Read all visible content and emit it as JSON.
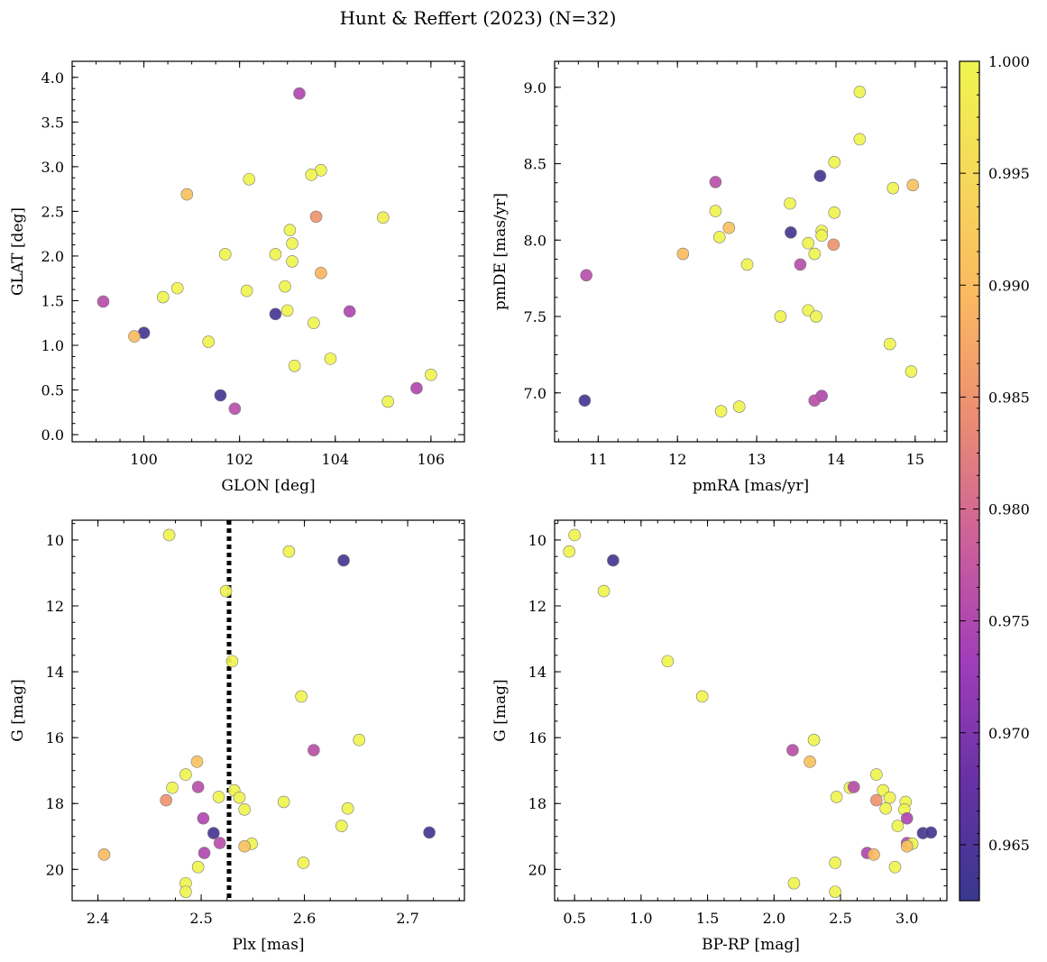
{
  "figure_title": "Hunt & Reffert (2023) (N=32)",
  "colorbar": {
    "range": [
      0.9625,
      1.0
    ],
    "ticks": [
      0.965,
      0.97,
      0.975,
      0.98,
      0.985,
      0.99,
      0.995,
      1.0
    ],
    "tick_labels": [
      "0.965",
      "0.970",
      "0.975",
      "0.980",
      "0.985",
      "0.990",
      "0.995",
      "1.000"
    ],
    "colormap": "plasma",
    "stops": [
      "#39388e",
      "#6731a5",
      "#a13dba",
      "#cd5f9a",
      "#eb8b73",
      "#fbb760",
      "#f6d85a",
      "#f0f44f"
    ]
  },
  "chart_data": [
    {
      "type": "scatter",
      "title": "",
      "xlabel": "GLON [deg]",
      "ylabel": "GLAT [deg]",
      "xlim": [
        98.5,
        106.7
      ],
      "ylim": [
        -0.08,
        4.18
      ],
      "xticks": [
        100,
        102,
        104,
        106
      ],
      "xtick_labels": [
        "100",
        "102",
        "104",
        "106"
      ],
      "yticks": [
        0.0,
        0.5,
        1.0,
        1.5,
        2.0,
        2.5,
        3.0,
        3.5,
        4.0
      ],
      "ytick_labels": [
        "0.0",
        "0.5",
        "1.0",
        "1.5",
        "2.0",
        "2.5",
        "3.0",
        "3.5",
        "4.0"
      ],
      "points": [
        {
          "x": 103.25,
          "y": 3.82,
          "c": 0.975
        },
        {
          "x": 103.7,
          "y": 2.96,
          "c": 1.0
        },
        {
          "x": 103.5,
          "y": 2.91,
          "c": 1.0
        },
        {
          "x": 102.2,
          "y": 2.86,
          "c": 1.0
        },
        {
          "x": 100.9,
          "y": 2.69,
          "c": 0.991
        },
        {
          "x": 103.6,
          "y": 2.44,
          "c": 0.985
        },
        {
          "x": 105.0,
          "y": 2.43,
          "c": 0.999
        },
        {
          "x": 103.05,
          "y": 2.29,
          "c": 1.0
        },
        {
          "x": 103.1,
          "y": 2.14,
          "c": 1.0
        },
        {
          "x": 101.7,
          "y": 2.02,
          "c": 1.0
        },
        {
          "x": 102.75,
          "y": 2.02,
          "c": 1.0
        },
        {
          "x": 103.1,
          "y": 1.94,
          "c": 1.0
        },
        {
          "x": 103.7,
          "y": 1.81,
          "c": 0.989
        },
        {
          "x": 102.95,
          "y": 1.66,
          "c": 1.0
        },
        {
          "x": 100.7,
          "y": 1.64,
          "c": 1.0
        },
        {
          "x": 102.15,
          "y": 1.61,
          "c": 1.0
        },
        {
          "x": 100.4,
          "y": 1.54,
          "c": 1.0
        },
        {
          "x": 99.15,
          "y": 1.49,
          "c": 0.976
        },
        {
          "x": 103.0,
          "y": 1.39,
          "c": 1.0
        },
        {
          "x": 104.3,
          "y": 1.38,
          "c": 0.975
        },
        {
          "x": 102.75,
          "y": 1.35,
          "c": 0.964
        },
        {
          "x": 103.55,
          "y": 1.25,
          "c": 1.0
        },
        {
          "x": 100.0,
          "y": 1.14,
          "c": 0.964
        },
        {
          "x": 99.8,
          "y": 1.1,
          "c": 0.99
        },
        {
          "x": 101.35,
          "y": 1.04,
          "c": 1.0
        },
        {
          "x": 103.9,
          "y": 0.85,
          "c": 1.0
        },
        {
          "x": 103.15,
          "y": 0.77,
          "c": 1.0
        },
        {
          "x": 106.0,
          "y": 0.67,
          "c": 1.0
        },
        {
          "x": 105.7,
          "y": 0.52,
          "c": 0.975
        },
        {
          "x": 101.6,
          "y": 0.44,
          "c": 0.964
        },
        {
          "x": 105.1,
          "y": 0.37,
          "c": 1.0
        },
        {
          "x": 101.9,
          "y": 0.29,
          "c": 0.976
        }
      ]
    },
    {
      "type": "scatter",
      "title": "",
      "xlabel": "pmRA [mas/yr]",
      "ylabel": "pmDE [mas/yr]",
      "xlim": [
        10.45,
        15.4
      ],
      "ylim": [
        6.68,
        9.17
      ],
      "xticks": [
        11,
        12,
        13,
        14,
        15
      ],
      "xtick_labels": [
        "11",
        "12",
        "13",
        "14",
        "15"
      ],
      "yticks": [
        7.0,
        7.5,
        8.0,
        8.5,
        9.0
      ],
      "ytick_labels": [
        "7.0",
        "7.5",
        "8.0",
        "8.5",
        "9.0"
      ],
      "points": [
        {
          "x": 14.3,
          "y": 8.97,
          "c": 1.0
        },
        {
          "x": 14.3,
          "y": 8.66,
          "c": 1.0
        },
        {
          "x": 13.98,
          "y": 8.51,
          "c": 1.0
        },
        {
          "x": 13.8,
          "y": 8.42,
          "c": 0.964
        },
        {
          "x": 12.48,
          "y": 8.38,
          "c": 0.976
        },
        {
          "x": 14.97,
          "y": 8.36,
          "c": 0.991
        },
        {
          "x": 14.72,
          "y": 8.34,
          "c": 1.0
        },
        {
          "x": 13.42,
          "y": 8.24,
          "c": 1.0
        },
        {
          "x": 12.48,
          "y": 8.19,
          "c": 1.0
        },
        {
          "x": 13.98,
          "y": 8.18,
          "c": 1.0
        },
        {
          "x": 12.65,
          "y": 8.08,
          "c": 0.991
        },
        {
          "x": 13.82,
          "y": 8.06,
          "c": 1.0
        },
        {
          "x": 13.43,
          "y": 8.05,
          "c": 0.964
        },
        {
          "x": 12.53,
          "y": 8.02,
          "c": 1.0
        },
        {
          "x": 13.82,
          "y": 8.03,
          "c": 1.0
        },
        {
          "x": 13.65,
          "y": 7.98,
          "c": 1.0
        },
        {
          "x": 13.97,
          "y": 7.97,
          "c": 0.985
        },
        {
          "x": 13.73,
          "y": 7.91,
          "c": 1.0
        },
        {
          "x": 12.07,
          "y": 7.91,
          "c": 0.99
        },
        {
          "x": 12.88,
          "y": 7.84,
          "c": 1.0
        },
        {
          "x": 13.55,
          "y": 7.84,
          "c": 0.976
        },
        {
          "x": 10.85,
          "y": 7.77,
          "c": 0.976
        },
        {
          "x": 13.65,
          "y": 7.54,
          "c": 1.0
        },
        {
          "x": 13.3,
          "y": 7.5,
          "c": 1.0
        },
        {
          "x": 13.75,
          "y": 7.5,
          "c": 1.0
        },
        {
          "x": 14.68,
          "y": 7.32,
          "c": 1.0
        },
        {
          "x": 14.95,
          "y": 7.14,
          "c": 1.0
        },
        {
          "x": 13.82,
          "y": 6.98,
          "c": 0.975
        },
        {
          "x": 13.73,
          "y": 6.95,
          "c": 0.976
        },
        {
          "x": 10.83,
          "y": 6.95,
          "c": 0.964
        },
        {
          "x": 12.78,
          "y": 6.91,
          "c": 1.0
        },
        {
          "x": 12.55,
          "y": 6.88,
          "c": 1.0
        }
      ]
    },
    {
      "type": "scatter",
      "title": "",
      "xlabel": "Plx [mas]",
      "ylabel": "G [mag]",
      "xlim": [
        2.375,
        2.755
      ],
      "ylim": [
        20.95,
        9.4
      ],
      "y_inverted": true,
      "xticks": [
        2.4,
        2.5,
        2.6,
        2.7
      ],
      "xtick_labels": [
        "2.4",
        "2.5",
        "2.6",
        "2.7"
      ],
      "yticks": [
        10,
        12,
        14,
        16,
        18,
        20
      ],
      "ytick_labels": [
        "10",
        "12",
        "14",
        "16",
        "18",
        "20"
      ],
      "vline": {
        "x": 2.527,
        "style": "dotted"
      },
      "points": [
        {
          "x": 2.469,
          "y": 9.85,
          "c": 1.0
        },
        {
          "x": 2.585,
          "y": 10.35,
          "c": 1.0
        },
        {
          "x": 2.638,
          "y": 10.62,
          "c": 0.964
        },
        {
          "x": 2.524,
          "y": 11.55,
          "c": 1.0
        },
        {
          "x": 2.53,
          "y": 13.68,
          "c": 1.0
        },
        {
          "x": 2.597,
          "y": 14.75,
          "c": 1.0
        },
        {
          "x": 2.653,
          "y": 16.07,
          "c": 1.0
        },
        {
          "x": 2.609,
          "y": 16.38,
          "c": 0.976
        },
        {
          "x": 2.496,
          "y": 16.73,
          "c": 0.991
        },
        {
          "x": 2.485,
          "y": 17.12,
          "c": 1.0
        },
        {
          "x": 2.472,
          "y": 17.52,
          "c": 1.0
        },
        {
          "x": 2.497,
          "y": 17.5,
          "c": 0.976
        },
        {
          "x": 2.532,
          "y": 17.6,
          "c": 1.0
        },
        {
          "x": 2.537,
          "y": 17.82,
          "c": 1.0
        },
        {
          "x": 2.517,
          "y": 17.8,
          "c": 1.0
        },
        {
          "x": 2.466,
          "y": 17.9,
          "c": 0.985
        },
        {
          "x": 2.58,
          "y": 17.95,
          "c": 1.0
        },
        {
          "x": 2.542,
          "y": 18.18,
          "c": 1.0
        },
        {
          "x": 2.642,
          "y": 18.15,
          "c": 1.0
        },
        {
          "x": 2.502,
          "y": 18.45,
          "c": 0.975
        },
        {
          "x": 2.636,
          "y": 18.68,
          "c": 1.0
        },
        {
          "x": 2.512,
          "y": 18.9,
          "c": 0.964
        },
        {
          "x": 2.721,
          "y": 18.88,
          "c": 0.964
        },
        {
          "x": 2.518,
          "y": 19.2,
          "c": 0.976
        },
        {
          "x": 2.549,
          "y": 19.22,
          "c": 1.0
        },
        {
          "x": 2.542,
          "y": 19.3,
          "c": 0.991
        },
        {
          "x": 2.503,
          "y": 19.5,
          "c": 0.975
        },
        {
          "x": 2.406,
          "y": 19.55,
          "c": 0.99
        },
        {
          "x": 2.599,
          "y": 19.8,
          "c": 1.0
        },
        {
          "x": 2.497,
          "y": 19.93,
          "c": 1.0
        },
        {
          "x": 2.485,
          "y": 20.42,
          "c": 1.0
        },
        {
          "x": 2.485,
          "y": 20.68,
          "c": 1.0
        }
      ]
    },
    {
      "type": "scatter",
      "title": "",
      "xlabel": "BP-RP [mag]",
      "ylabel": "G [mag]",
      "xlim": [
        0.35,
        3.3
      ],
      "ylim": [
        20.95,
        9.4
      ],
      "y_inverted": true,
      "xticks": [
        0.5,
        1.0,
        1.5,
        2.0,
        2.5,
        3.0
      ],
      "xtick_labels": [
        "0.5",
        "1.0",
        "1.5",
        "2.0",
        "2.5",
        "3.0"
      ],
      "yticks": [
        10,
        12,
        14,
        16,
        18,
        20
      ],
      "ytick_labels": [
        "10",
        "12",
        "14",
        "16",
        "18",
        "20"
      ],
      "points": [
        {
          "x": 0.5,
          "y": 9.85,
          "c": 1.0
        },
        {
          "x": 0.46,
          "y": 10.35,
          "c": 1.0
        },
        {
          "x": 0.79,
          "y": 10.62,
          "c": 0.964
        },
        {
          "x": 0.72,
          "y": 11.55,
          "c": 1.0
        },
        {
          "x": 1.2,
          "y": 13.68,
          "c": 1.0
        },
        {
          "x": 1.46,
          "y": 14.75,
          "c": 1.0
        },
        {
          "x": 2.3,
          "y": 16.07,
          "c": 1.0
        },
        {
          "x": 2.14,
          "y": 16.38,
          "c": 0.976
        },
        {
          "x": 2.27,
          "y": 16.73,
          "c": 0.991
        },
        {
          "x": 2.77,
          "y": 17.12,
          "c": 1.0
        },
        {
          "x": 2.57,
          "y": 17.52,
          "c": 1.0
        },
        {
          "x": 2.6,
          "y": 17.5,
          "c": 0.976
        },
        {
          "x": 2.82,
          "y": 17.6,
          "c": 1.0
        },
        {
          "x": 2.87,
          "y": 17.82,
          "c": 1.0
        },
        {
          "x": 2.47,
          "y": 17.8,
          "c": 1.0
        },
        {
          "x": 2.77,
          "y": 17.9,
          "c": 0.985
        },
        {
          "x": 2.99,
          "y": 17.95,
          "c": 1.0
        },
        {
          "x": 2.98,
          "y": 18.18,
          "c": 1.0
        },
        {
          "x": 2.84,
          "y": 18.15,
          "c": 1.0
        },
        {
          "x": 3.0,
          "y": 18.45,
          "c": 0.975
        },
        {
          "x": 2.93,
          "y": 18.68,
          "c": 1.0
        },
        {
          "x": 3.12,
          "y": 18.9,
          "c": 0.964
        },
        {
          "x": 3.18,
          "y": 18.88,
          "c": 0.964
        },
        {
          "x": 3.0,
          "y": 19.2,
          "c": 0.976
        },
        {
          "x": 3.04,
          "y": 19.22,
          "c": 1.0
        },
        {
          "x": 3.0,
          "y": 19.3,
          "c": 0.991
        },
        {
          "x": 2.7,
          "y": 19.5,
          "c": 0.975
        },
        {
          "x": 2.75,
          "y": 19.55,
          "c": 0.99
        },
        {
          "x": 2.46,
          "y": 19.8,
          "c": 1.0
        },
        {
          "x": 2.91,
          "y": 19.93,
          "c": 1.0
        },
        {
          "x": 2.15,
          "y": 20.42,
          "c": 1.0
        },
        {
          "x": 2.46,
          "y": 20.68,
          "c": 1.0
        }
      ]
    }
  ]
}
